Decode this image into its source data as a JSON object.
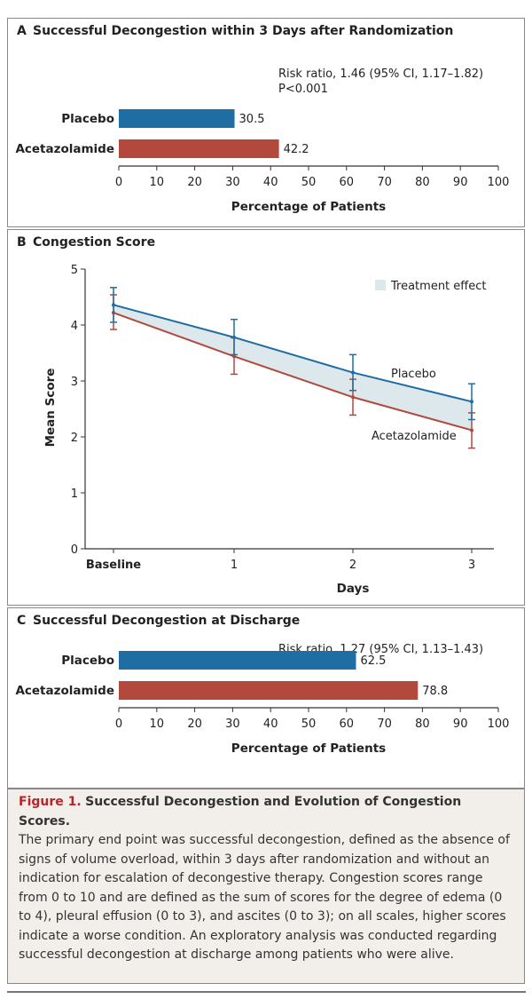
{
  "chart_data": [
    {
      "panel": "A",
      "title": "Successful Decongestion within 3 Days after Randomization",
      "type": "bar",
      "orientation": "horizontal",
      "categories": [
        "Placebo",
        "Acetazolamide"
      ],
      "values": [
        30.5,
        42.2
      ],
      "value_labels": [
        "30.5",
        "42.2"
      ],
      "colors": [
        "#1f6ea3",
        "#b3493d"
      ],
      "xlabel": "Percentage of Patients",
      "xlim": [
        0,
        100
      ],
      "xticks": [
        "0",
        "10",
        "20",
        "30",
        "40",
        "50",
        "60",
        "70",
        "80",
        "90",
        "100"
      ],
      "annotation": [
        "Risk ratio, 1.46 (95% CI, 1.17–1.82)",
        "P<0.001"
      ]
    },
    {
      "panel": "B",
      "title": "Congestion Score",
      "type": "line",
      "x": [
        "Baseline",
        "1",
        "2",
        "3"
      ],
      "xlabel": "Days",
      "ylabel": "Mean Score",
      "ylim": [
        0,
        5
      ],
      "yticks": [
        "0",
        "1",
        "2",
        "3",
        "4",
        "5"
      ],
      "series": [
        {
          "name": "Placebo",
          "color": "#1f6ea3",
          "values": [
            4.36,
            3.78,
            3.15,
            2.63
          ],
          "ci_low": [
            4.05,
            3.47,
            2.83,
            2.31
          ],
          "ci_high": [
            4.67,
            4.1,
            3.47,
            2.95
          ]
        },
        {
          "name": "Acetazolamide",
          "color": "#b3493d",
          "values": [
            4.22,
            3.44,
            2.71,
            2.12
          ],
          "ci_low": [
            3.92,
            3.12,
            2.39,
            1.8
          ],
          "ci_high": [
            4.54,
            3.77,
            3.03,
            2.43
          ]
        }
      ],
      "legend": {
        "label": "Treatment effect",
        "color": "#dde8ec",
        "placement": "top-right"
      }
    },
    {
      "panel": "C",
      "title": "Successful Decongestion at Discharge",
      "type": "bar",
      "orientation": "horizontal",
      "categories": [
        "Placebo",
        "Acetazolamide"
      ],
      "values": [
        62.5,
        78.8
      ],
      "value_labels": [
        "62.5",
        "78.8"
      ],
      "colors": [
        "#1f6ea3",
        "#b3493d"
      ],
      "xlabel": "Percentage of Patients",
      "xlim": [
        0,
        100
      ],
      "xticks": [
        "0",
        "10",
        "20",
        "30",
        "40",
        "50",
        "60",
        "70",
        "80",
        "90",
        "100"
      ],
      "annotation": [
        "Risk ratio, 1.27 (95% CI, 1.13–1.43)"
      ]
    }
  ],
  "caption": {
    "label": "Figure 1.",
    "title": "Successful Decongestion and Evolution of Congestion Scores.",
    "text": "The primary end point was successful decongestion, defined as the absence of signs of volume overload, within 3 days after randomization and without an indication for escalation of decongestive therapy. Congestion scores range from 0 to 10 and are defined as the sum of scores for the degree of edema (0 to 4), pleural effusion (0 to 3), and ascites (0 to 3); on all scales, higher scores indicate a worse condition. An exploratory analysis was conducted regarding successful decongestion at discharge among patients who were alive."
  }
}
